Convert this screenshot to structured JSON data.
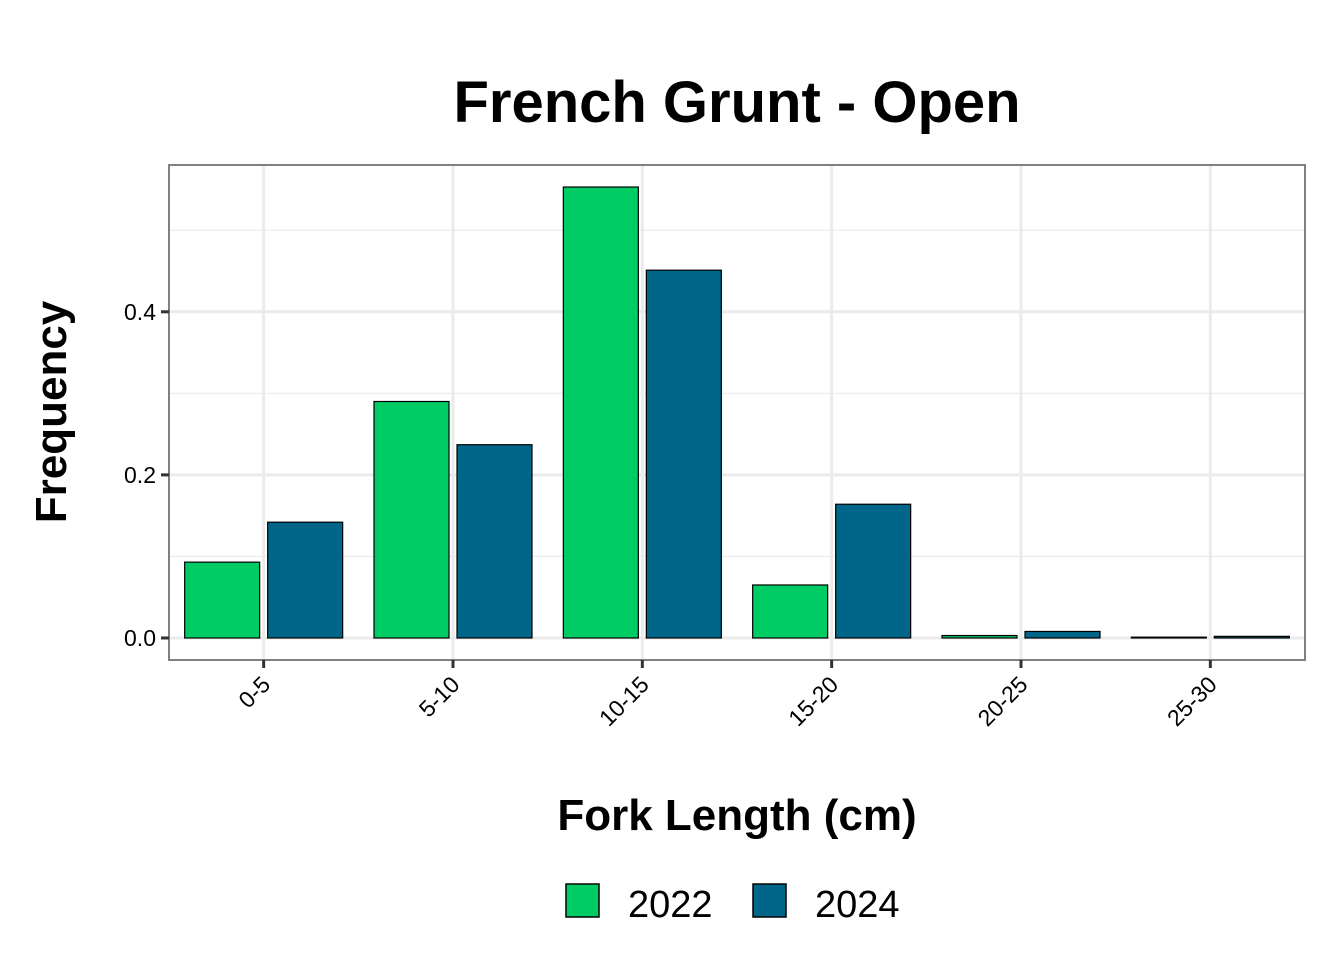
{
  "chart_data": {
    "type": "bar",
    "title": "French Grunt - Open",
    "xlabel": "Fork Length (cm)",
    "ylabel": "Frequency",
    "categories": [
      "0-5",
      "5-10",
      "10-15",
      "15-20",
      "20-25",
      "25-30"
    ],
    "series": [
      {
        "name": "2022",
        "color": "#00CC66",
        "values": [
          0.093,
          0.29,
          0.553,
          0.065,
          0.003,
          0.001
        ]
      },
      {
        "name": "2024",
        "color": "#006689",
        "values": [
          0.142,
          0.237,
          0.451,
          0.164,
          0.008,
          0.002
        ]
      }
    ],
    "yticks": [
      0.0,
      0.2,
      0.4
    ],
    "ytick_labels": [
      "0.0",
      "0.2",
      "0.4"
    ],
    "ylim": [
      -0.027,
      0.58
    ],
    "grid": true,
    "legend_position": "bottom",
    "bar_outline_color": "#000000",
    "panel_border_color": "#808080",
    "grid_color": "#EBEBEB"
  }
}
